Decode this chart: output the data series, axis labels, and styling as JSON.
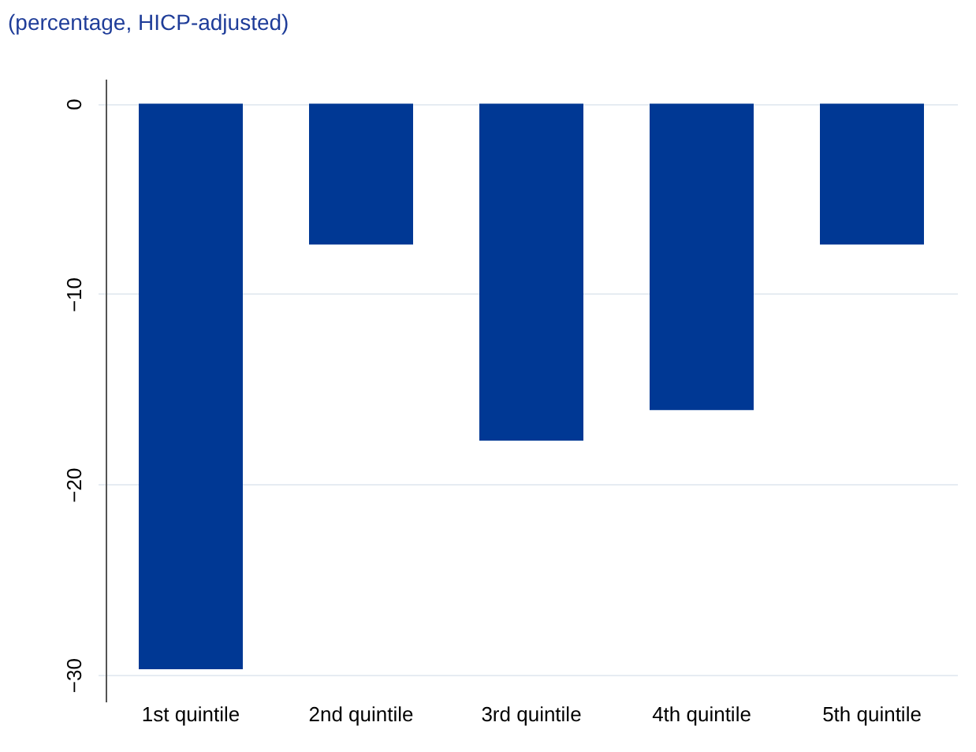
{
  "chart_data": {
    "type": "bar",
    "title": "(percentage, HICP-adjusted)",
    "categories": [
      "1st quintile",
      "2nd quintile",
      "3rd quintile",
      "4th quintile",
      "5th quintile"
    ],
    "values": [
      -29.7,
      -7.4,
      -17.7,
      -16.1,
      -7.4
    ],
    "color": "#003894",
    "ylim": [
      -31.4,
      1.3
    ],
    "yticks": [
      0,
      -10,
      -20,
      -30
    ],
    "grid": "y"
  }
}
